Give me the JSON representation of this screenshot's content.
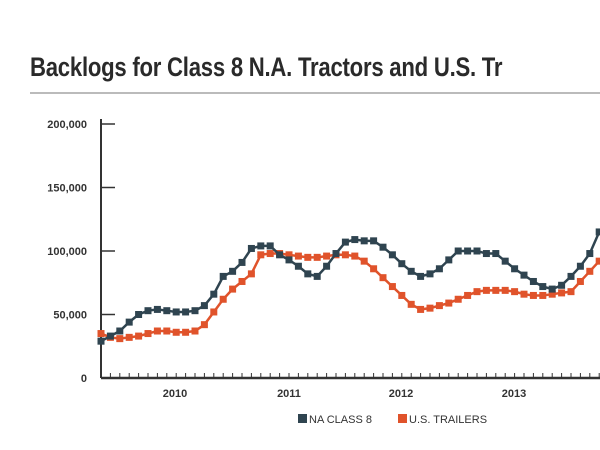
{
  "chart_data": {
    "type": "line",
    "title": "Backlogs for Class 8 N.A. Tractors and U.S. Tr",
    "xlabel": "",
    "ylabel": "",
    "ylim": [
      0,
      200000
    ],
    "yticks": [
      "0",
      "50,000",
      "100,000",
      "150,000",
      "200,000"
    ],
    "ytick_values": [
      0,
      50000,
      100000,
      150000,
      200000
    ],
    "xticks": [
      "2010",
      "2011",
      "2012",
      "2013"
    ],
    "x_unit": "month",
    "grid": false,
    "legend_position": "bottom",
    "series": [
      {
        "name": "NA CLASS 8",
        "color": "#2f4450",
        "values": [
          29000,
          33000,
          37000,
          44000,
          50000,
          53000,
          54000,
          53000,
          52000,
          52000,
          53000,
          57000,
          66000,
          80000,
          84000,
          91000,
          102000,
          104000,
          104000,
          97000,
          93000,
          88000,
          82000,
          80000,
          88000,
          98000,
          107000,
          109000,
          108000,
          108000,
          103000,
          97000,
          90000,
          84000,
          80000,
          82000,
          86000,
          93000,
          100000,
          100000,
          100000,
          98000,
          98000,
          92000,
          86000,
          81000,
          76000,
          72000,
          70000,
          73000,
          80000,
          88000,
          98000,
          115000
        ]
      },
      {
        "name": "U.S. TRAILERS",
        "color": "#e0532b",
        "values": [
          35000,
          32000,
          31000,
          32000,
          33000,
          35000,
          37000,
          37000,
          36000,
          36000,
          37000,
          42000,
          52000,
          62000,
          70000,
          76000,
          82000,
          97000,
          98000,
          98000,
          97000,
          96000,
          95000,
          95000,
          96000,
          97000,
          97000,
          96000,
          92000,
          86000,
          79000,
          72000,
          65000,
          58000,
          54000,
          55000,
          57000,
          59000,
          62000,
          65000,
          68000,
          69000,
          69000,
          69000,
          68000,
          66000,
          65000,
          65000,
          66000,
          67000,
          68000,
          76000,
          84000,
          92000
        ]
      }
    ]
  }
}
